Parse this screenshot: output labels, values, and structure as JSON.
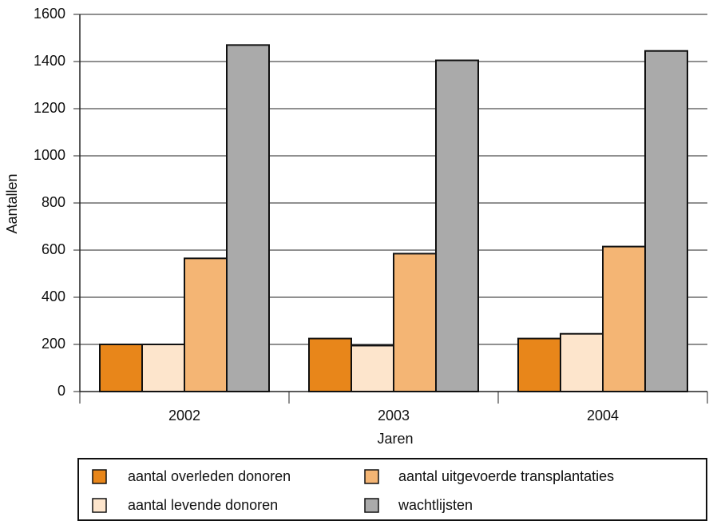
{
  "chart_data": {
    "type": "bar",
    "x_label": "Jaren",
    "y_label": "Aantallen",
    "categories": [
      "2002",
      "2003",
      "2004"
    ],
    "series": [
      {
        "name": "aantal overleden donoren",
        "color": "#e8861a",
        "values": [
          200,
          225,
          225
        ]
      },
      {
        "name": "aantal levende donoren",
        "color": "#fde5cc",
        "values": [
          200,
          195,
          245
        ]
      },
      {
        "name": "aantal uitgevoerde transplantaties",
        "color": "#f4b574",
        "values": [
          565,
          585,
          615
        ]
      },
      {
        "name": "wachtlijsten",
        "color": "#aaaaaa",
        "values": [
          1470,
          1405,
          1445
        ]
      }
    ],
    "ylim": [
      0,
      1600
    ],
    "yticks": [
      0,
      200,
      400,
      600,
      800,
      1000,
      1200,
      1400,
      1600
    ],
    "grid": true
  }
}
